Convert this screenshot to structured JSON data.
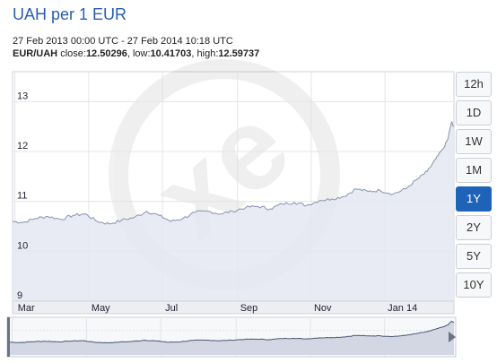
{
  "header": {
    "title": "UAH per 1 EUR",
    "range": "27 Feb 2013 00:00 UTC - 27 Feb 2014 10:18 UTC",
    "pair": "EUR/UAH",
    "close_label": "close:",
    "close": "12.50296",
    "low_label": "low:",
    "low": "10.41703",
    "high_label": "high:",
    "high": "12.59737"
  },
  "period_buttons": [
    {
      "label": "12h",
      "active": false
    },
    {
      "label": "1D",
      "active": false
    },
    {
      "label": "1W",
      "active": false
    },
    {
      "label": "1M",
      "active": false
    },
    {
      "label": "1Y",
      "active": true
    },
    {
      "label": "2Y",
      "active": false
    },
    {
      "label": "5Y",
      "active": false
    },
    {
      "label": "10Y",
      "active": false
    }
  ],
  "colors": {
    "line": "#8a93ad",
    "area": "#e4e7f1",
    "grid": "#e2e4e9",
    "accent": "#1f63b8"
  },
  "chart_data": {
    "type": "area",
    "title": "UAH per 1 EUR",
    "ylim": [
      9,
      13.6
    ],
    "xlim": [
      "2013-02-27",
      "2014-02-27"
    ],
    "y_ticks": [
      9,
      10,
      11,
      12,
      13
    ],
    "x_ticks": [
      {
        "label": "Mar",
        "date": "2013-03-01"
      },
      {
        "label": "May",
        "date": "2013-05-01"
      },
      {
        "label": "Jul",
        "date": "2013-07-01"
      },
      {
        "label": "Sep",
        "date": "2013-09-01"
      },
      {
        "label": "Nov",
        "date": "2013-11-01"
      },
      {
        "label": "Jan 14",
        "date": "2014-01-01"
      }
    ],
    "series": [
      {
        "x": [
          "2013-02-27",
          "2013-03-08",
          "2013-03-18",
          "2013-03-28",
          "2013-04-08",
          "2013-04-18",
          "2013-04-28",
          "2013-05-08",
          "2013-05-18",
          "2013-05-28",
          "2013-06-08",
          "2013-06-18",
          "2013-06-28",
          "2013-07-08",
          "2013-07-18",
          "2013-07-28",
          "2013-08-08",
          "2013-08-18",
          "2013-08-28",
          "2013-09-08",
          "2013-09-18",
          "2013-09-28",
          "2013-10-08",
          "2013-10-18",
          "2013-10-28",
          "2013-11-08",
          "2013-11-18",
          "2013-11-28",
          "2013-12-08",
          "2013-12-18",
          "2013-12-28",
          "2014-01-08",
          "2014-01-18",
          "2014-01-28",
          "2014-02-05",
          "2014-02-12",
          "2014-02-18",
          "2014-02-22",
          "2014-02-25",
          "2014-02-27"
        ],
        "y": [
          10.6,
          10.58,
          10.66,
          10.7,
          10.64,
          10.72,
          10.75,
          10.6,
          10.55,
          10.62,
          10.68,
          10.8,
          10.72,
          10.6,
          10.66,
          10.78,
          10.8,
          10.75,
          10.8,
          10.88,
          10.9,
          10.85,
          10.95,
          10.98,
          10.92,
          11.02,
          11.05,
          11.1,
          11.25,
          11.2,
          11.22,
          11.15,
          11.25,
          11.45,
          11.6,
          11.85,
          12.05,
          12.25,
          12.59,
          12.5
        ]
      }
    ],
    "overview": {
      "x_ticks": [
        "2013-03-01",
        "2013-05-01",
        "2013-07-01",
        "2013-09-01",
        "2013-11-01",
        "2014-01-01"
      ]
    }
  }
}
